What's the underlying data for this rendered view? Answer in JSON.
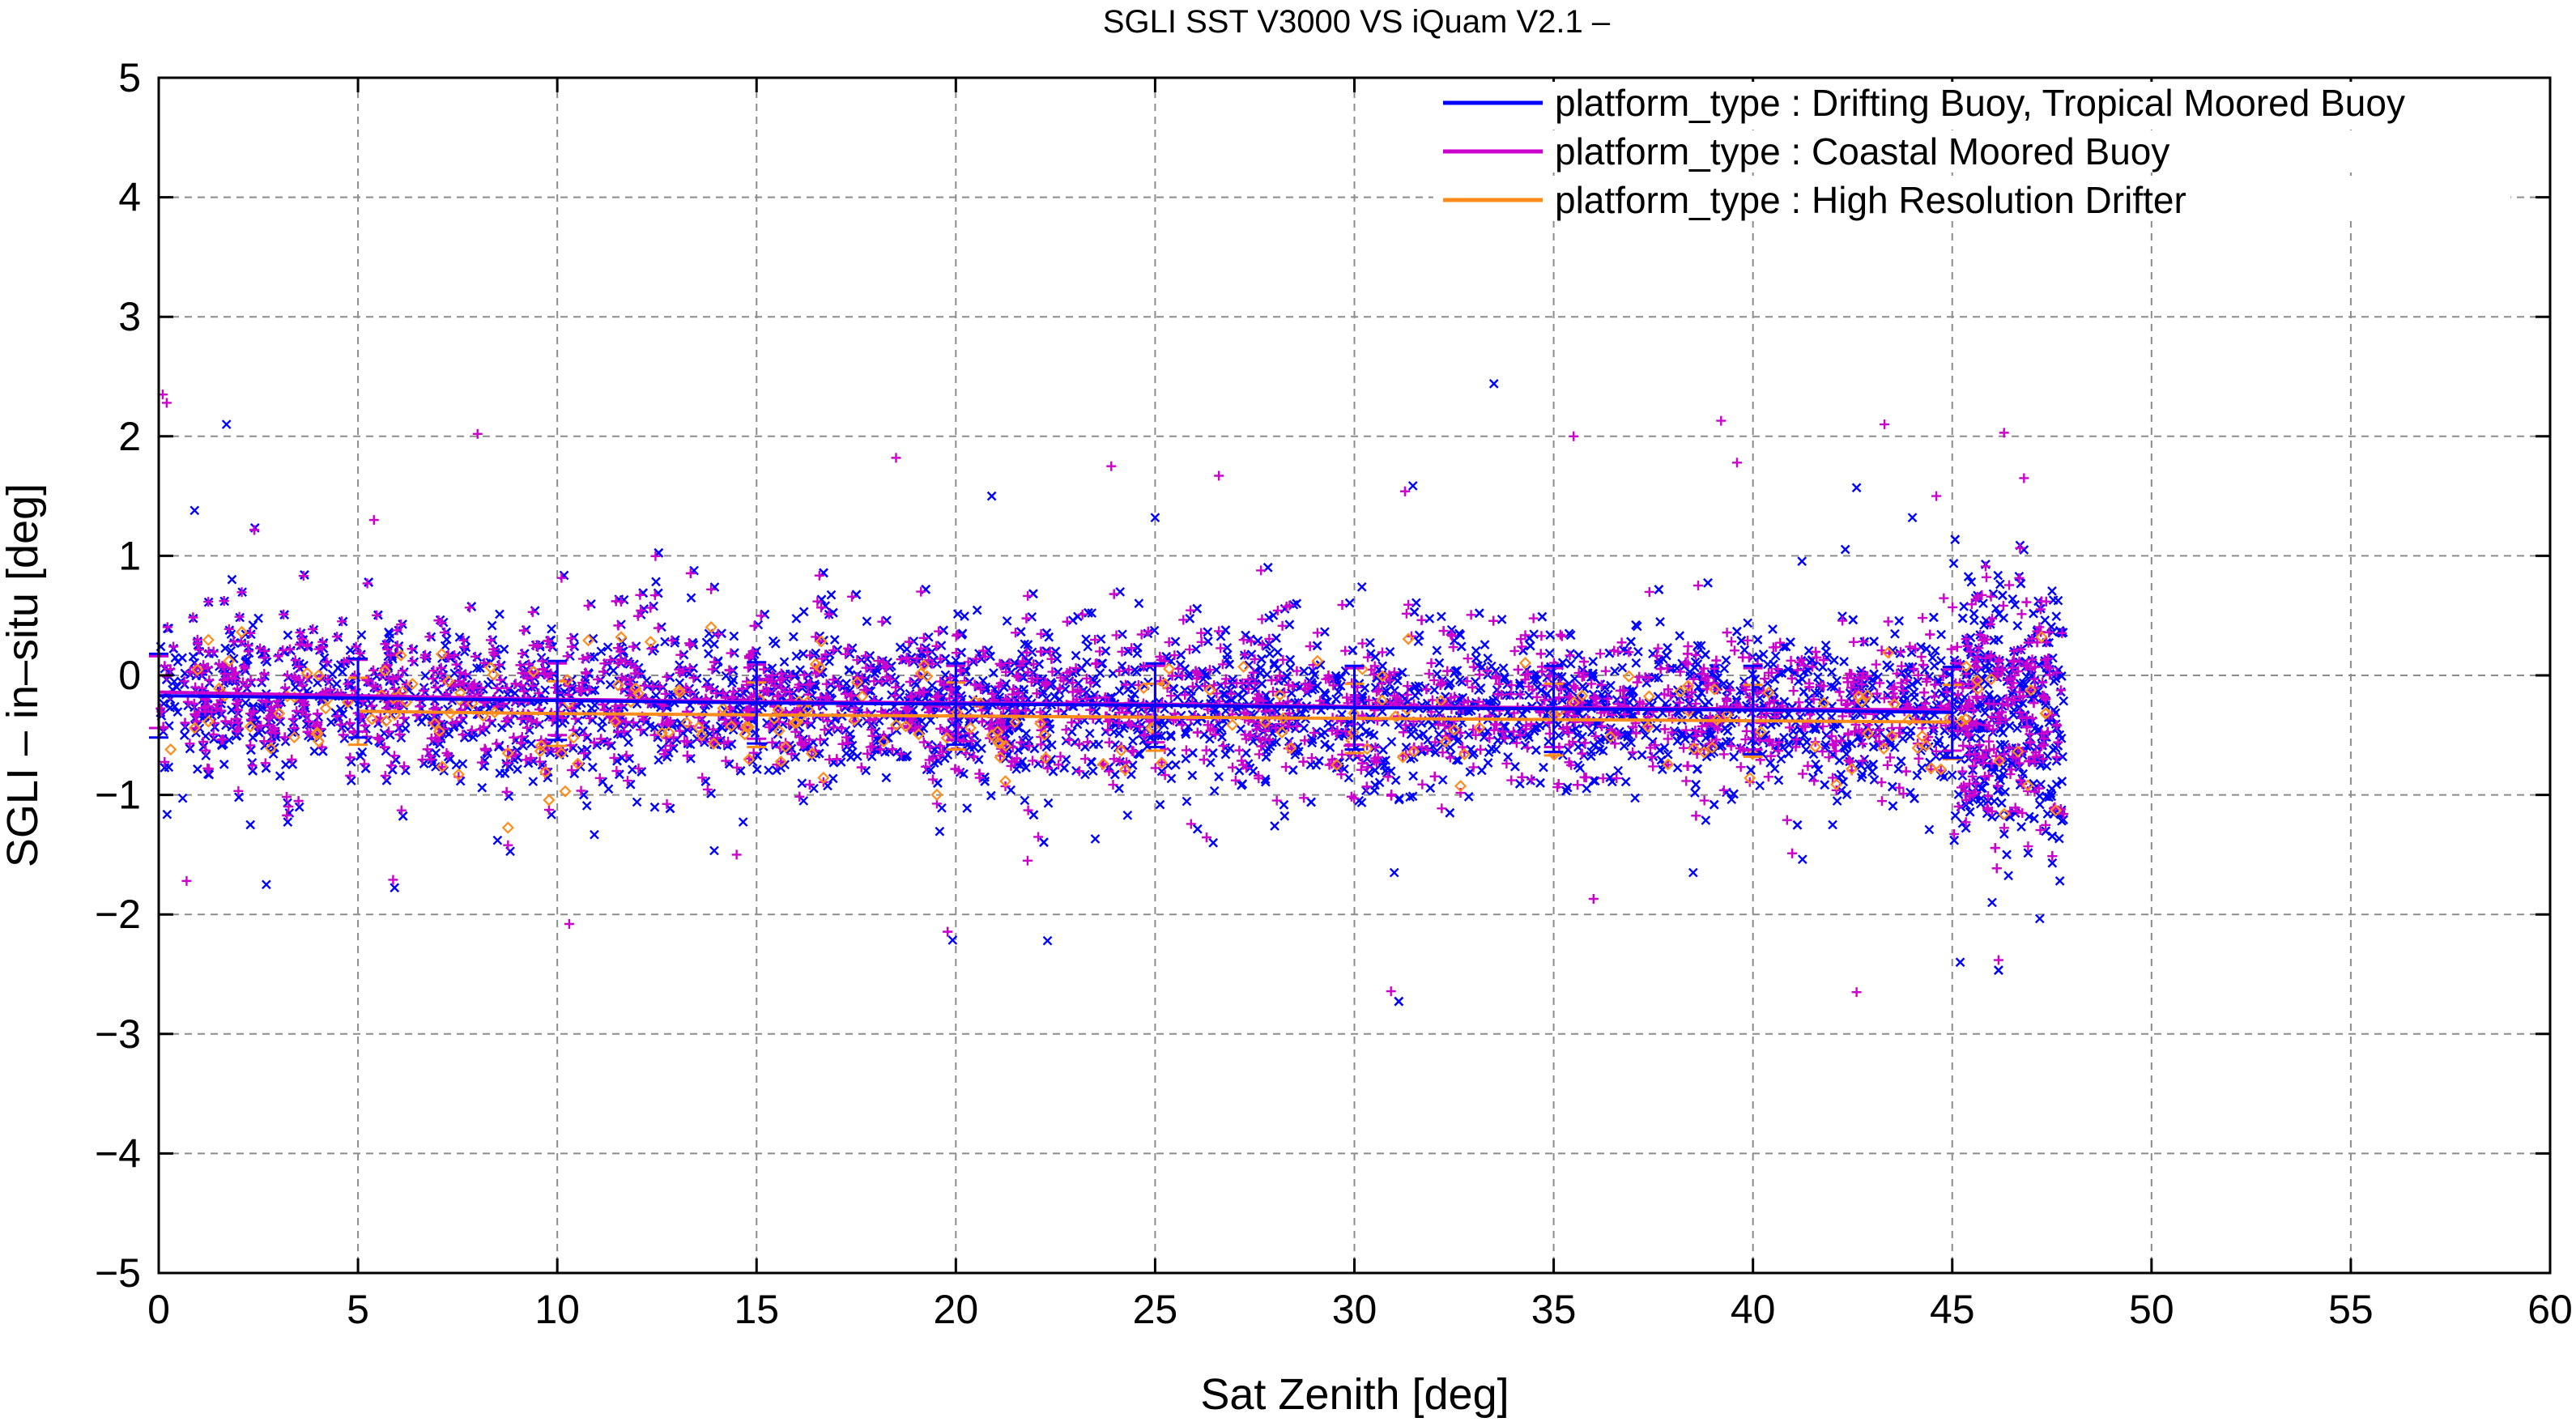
{
  "chart_data": {
    "type": "scatter",
    "title": "SGLI SST V3000 VS iQuam V2.1  –",
    "xlabel": "Sat Zenith [deg]",
    "ylabel": "SGLI – in–situ [deg]",
    "xlim": [
      0,
      60
    ],
    "ylim": [
      -5,
      5
    ],
    "x_ticks": [
      0,
      5,
      10,
      15,
      20,
      25,
      30,
      35,
      40,
      45,
      50,
      55,
      60
    ],
    "y_ticks": [
      5,
      4,
      3,
      2,
      1,
      0,
      -1,
      -2,
      -3,
      -4,
      -5
    ],
    "y_tick_labels": [
      "5",
      "4",
      "3",
      "2",
      "1",
      "0",
      "−1",
      "−2",
      "−3",
      "−4",
      "−5"
    ],
    "grid": true,
    "legend_position": "top-right",
    "series": [
      {
        "name": "platform_type : Drifting Buoy, Tropical Moored Buoy",
        "color": "#0000ff",
        "marker": "x",
        "mean_x": [
          0,
          5,
          10,
          15,
          20,
          25,
          30,
          35,
          40,
          45
        ],
        "mean_y": [
          -0.17,
          -0.19,
          -0.21,
          -0.23,
          -0.24,
          -0.25,
          -0.27,
          -0.28,
          -0.29,
          -0.31
        ],
        "mean_err": [
          0.35,
          0.33,
          0.33,
          0.34,
          0.34,
          0.35,
          0.35,
          0.36,
          0.37,
          0.38
        ],
        "cloud": {
          "x_range": [
            0,
            47.8
          ],
          "center": -0.25,
          "spread": 0.33,
          "count": 4200
        },
        "outliers": [
          [
            1.7,
            2.1
          ],
          [
            0.9,
            1.38
          ],
          [
            2.7,
            -1.75
          ],
          [
            2.3,
            -1.25
          ],
          [
            8.5,
            -1.38
          ],
          [
            22.3,
            -2.22
          ],
          [
            33.5,
            2.44
          ],
          [
            45.2,
            -2.4
          ],
          [
            46.0,
            -1.9
          ],
          [
            47.7,
            -1.72
          ],
          [
            42.6,
            1.57
          ],
          [
            44.0,
            1.32
          ],
          [
            46.8,
            1.05
          ],
          [
            20.9,
            1.5
          ],
          [
            25.0,
            1.32
          ],
          [
            38.5,
            -1.65
          ],
          [
            42.0,
            -1.25
          ],
          [
            31.0,
            -1.65
          ],
          [
            12.0,
            -1.06
          ],
          [
            28.0,
            -1.26
          ]
        ]
      },
      {
        "name": "platform_type : Coastal Moored Buoy",
        "color": "#cc00cc",
        "marker": "+",
        "mean_x": [
          0,
          5,
          10,
          15,
          20,
          25,
          30,
          35,
          40,
          45
        ],
        "mean_y": [
          -0.14,
          -0.17,
          -0.2,
          -0.22,
          -0.23,
          -0.24,
          -0.26,
          -0.27,
          -0.28,
          -0.29
        ],
        "mean_err": [
          0.3,
          0.3,
          0.3,
          0.31,
          0.31,
          0.32,
          0.32,
          0.33,
          0.34,
          0.34
        ],
        "cloud": {
          "x_range": [
            0,
            47.5
          ],
          "center": -0.22,
          "spread": 0.32,
          "count": 2600
        },
        "outliers": [
          [
            0.1,
            2.35
          ],
          [
            0.2,
            2.28
          ],
          [
            8.0,
            2.02
          ],
          [
            18.5,
            1.82
          ],
          [
            23.9,
            1.75
          ],
          [
            26.6,
            1.67
          ],
          [
            35.5,
            2.0
          ],
          [
            39.2,
            2.13
          ],
          [
            39.6,
            1.78
          ],
          [
            43.3,
            2.1
          ],
          [
            46.3,
            2.03
          ],
          [
            46.8,
            1.65
          ],
          [
            42.6,
            -2.65
          ],
          [
            10.3,
            -2.08
          ],
          [
            36.0,
            -1.87
          ],
          [
            0.7,
            -1.72
          ],
          [
            5.4,
            1.3
          ],
          [
            14.5,
            -1.5
          ],
          [
            21.8,
            -1.55
          ],
          [
            44.6,
            1.5
          ]
        ]
      },
      {
        "name": "platform_type : High Resolution Drifter",
        "color": "#ff8c1a",
        "marker": "diamond",
        "mean_x": [
          5,
          10,
          15,
          20,
          25,
          30,
          35,
          40,
          45
        ],
        "mean_y": [
          -0.3,
          -0.32,
          -0.33,
          -0.34,
          -0.35,
          -0.36,
          -0.37,
          -0.38,
          -0.39
        ],
        "mean_err": [
          0.28,
          0.27,
          0.27,
          0.28,
          0.28,
          0.29,
          0.3,
          0.3,
          0.31
        ],
        "cloud": {
          "x_range": [
            0,
            47.5
          ],
          "center": -0.3,
          "spread": 0.25,
          "count": 220
        },
        "outliers": [
          [
            47.6,
            -1.13
          ],
          [
            0.3,
            -0.62
          ],
          [
            10.2,
            -0.97
          ]
        ]
      }
    ]
  }
}
